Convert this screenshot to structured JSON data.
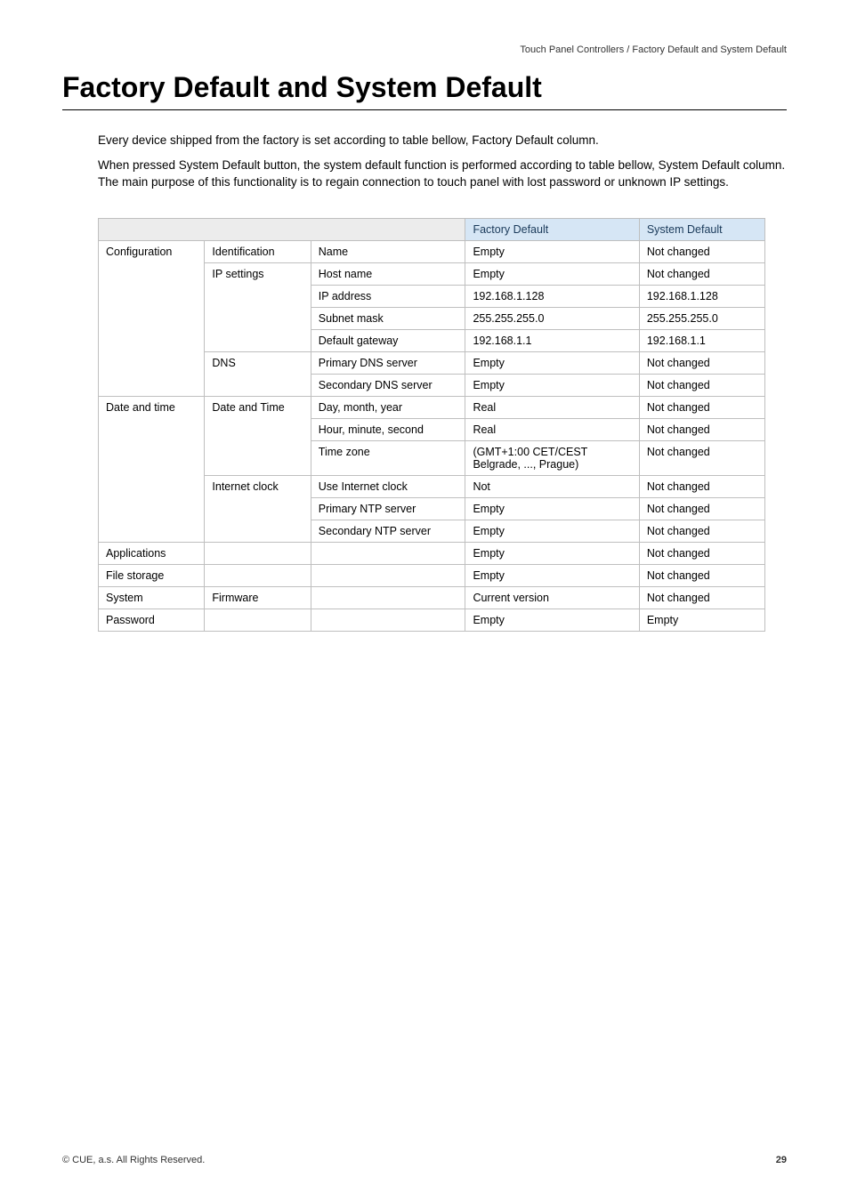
{
  "header": {
    "path": "Touch Panel Controllers / Factory Default and System Default"
  },
  "title": "Factory Default and System Default",
  "intro": {
    "p1": "Every device shipped from the factory is set according to table bellow, Factory Default column.",
    "p2": "When pressed System Default button, the system default function is performed according to table bellow, System Default column. The main purpose of this functionality is to regain connection to touch panel with lost password or unknown IP settings."
  },
  "table": {
    "headers": {
      "factory": "Factory Default",
      "system": "System Default"
    },
    "rows": [
      {
        "c1": "Configuration",
        "c2": "Identification",
        "c3": "Name",
        "c4": "Empty",
        "c5": "Not changed"
      },
      {
        "c1": "",
        "c2": "IP settings",
        "c3": "Host name",
        "c4": "Empty",
        "c5": "Not changed"
      },
      {
        "c1": "",
        "c2": "",
        "c3": "IP address",
        "c4": "192.168.1.128",
        "c5": "192.168.1.128"
      },
      {
        "c1": "",
        "c2": "",
        "c3": "Subnet mask",
        "c4": "255.255.255.0",
        "c5": "255.255.255.0"
      },
      {
        "c1": "",
        "c2": "",
        "c3": "Default gateway",
        "c4": "192.168.1.1",
        "c5": "192.168.1.1"
      },
      {
        "c1": "",
        "c2": "DNS",
        "c3": "Primary DNS server",
        "c4": "Empty",
        "c5": "Not changed"
      },
      {
        "c1": "",
        "c2": "",
        "c3": "Secondary DNS server",
        "c4": "Empty",
        "c5": "Not changed"
      },
      {
        "c1": "Date and time",
        "c2": "Date and Time",
        "c3": "Day, month, year",
        "c4": "Real",
        "c5": "Not changed"
      },
      {
        "c1": "",
        "c2": "",
        "c3": "Hour, minute, second",
        "c4": "Real",
        "c5": "Not changed"
      },
      {
        "c1": "",
        "c2": "",
        "c3": "Time zone",
        "c4": "(GMT+1:00 CET/CEST Belgrade, ..., Prague)",
        "c5": "Not changed"
      },
      {
        "c1": "",
        "c2": "Internet clock",
        "c3": "Use Internet clock",
        "c4": "Not",
        "c5": "Not changed"
      },
      {
        "c1": "",
        "c2": "",
        "c3": "Primary NTP server",
        "c4": "Empty",
        "c5": "Not changed"
      },
      {
        "c1": "",
        "c2": "",
        "c3": "Secondary NTP server",
        "c4": "Empty",
        "c5": "Not changed"
      },
      {
        "c1": "Applications",
        "c2": "",
        "c3": "",
        "c4": "Empty",
        "c5": "Not changed"
      },
      {
        "c1": "File storage",
        "c2": "",
        "c3": "",
        "c4": "Empty",
        "c5": "Not changed"
      },
      {
        "c1": "System",
        "c2": "Firmware",
        "c3": "",
        "c4": "Current version",
        "c5": "Not changed"
      },
      {
        "c1": "Password",
        "c2": "",
        "c3": "",
        "c4": "Empty",
        "c5": "Empty"
      }
    ],
    "spans": {
      "col1": [
        {
          "start": 0,
          "span": 7
        },
        {
          "start": 7,
          "span": 6
        },
        {
          "start": 13,
          "span": 1
        },
        {
          "start": 14,
          "span": 1
        },
        {
          "start": 15,
          "span": 1
        },
        {
          "start": 16,
          "span": 1
        }
      ],
      "col2": [
        {
          "start": 0,
          "span": 1
        },
        {
          "start": 1,
          "span": 4
        },
        {
          "start": 5,
          "span": 2
        },
        {
          "start": 7,
          "span": 3
        },
        {
          "start": 10,
          "span": 3
        },
        {
          "start": 13,
          "span": 1
        },
        {
          "start": 14,
          "span": 1
        },
        {
          "start": 15,
          "span": 1
        },
        {
          "start": 16,
          "span": 1
        }
      ]
    }
  },
  "footer": {
    "copyright": "© CUE, a.s. All Rights Reserved.",
    "page_number": "29"
  }
}
